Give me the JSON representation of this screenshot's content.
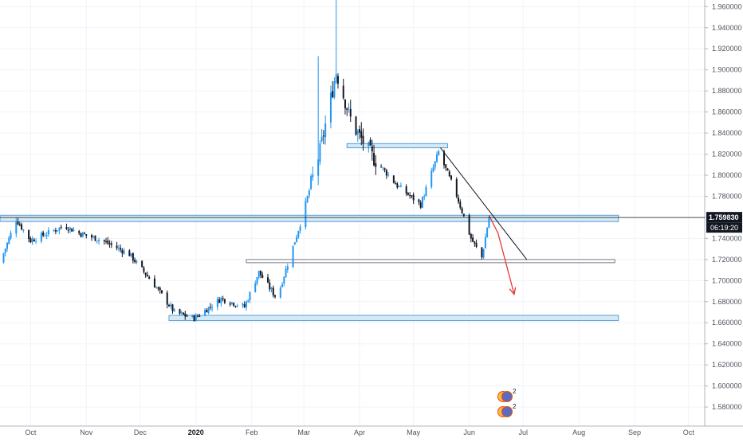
{
  "price_axis": {
    "ticks": [
      "1.960000",
      "1.940000",
      "1.920000",
      "1.900000",
      "1.880000",
      "1.860000",
      "1.840000",
      "1.820000",
      "1.800000",
      "1.780000",
      "1.760000",
      "1.740000",
      "1.720000",
      "1.700000",
      "1.680000",
      "1.660000",
      "1.640000",
      "1.620000",
      "1.600000",
      "1.580000"
    ],
    "tick_values": [
      1.96,
      1.94,
      1.92,
      1.9,
      1.88,
      1.86,
      1.84,
      1.82,
      1.8,
      1.78,
      1.76,
      1.74,
      1.72,
      1.7,
      1.68,
      1.66,
      1.64,
      1.62,
      1.6,
      1.58
    ],
    "current_price": "1.759830",
    "current_price_value": 1.75983,
    "countdown": "06:19:20"
  },
  "time_axis": {
    "labels": [
      "Oct",
      "Nov",
      "Dec",
      "2020",
      "Feb",
      "Mar",
      "Apr",
      "May",
      "Jun",
      "Jul",
      "Aug",
      "Sep",
      "Oct"
    ],
    "bold_label": "2020"
  },
  "colors": {
    "up": "#2196f3",
    "down": "#131722",
    "zone_fill": "#d4e9f6",
    "zone_stroke": "#5b9bd5",
    "trendline": "#131722",
    "arrow": "#e53935",
    "price_label_bg": "#131722"
  },
  "chart_data": {
    "type": "candlestick",
    "x_range": [
      "2019-09-14",
      "2020-10-10"
    ],
    "ylim": [
      1.571,
      1.9625
    ],
    "key_prices": {
      "all_time_high_wick": 1.97,
      "mar_peak": 1.905,
      "dec_low": 1.662,
      "jun_low": 1.72,
      "sep_oct_highs": 1.762
    },
    "series_path": [
      {
        "date": "2019-09-14",
        "close": 1.717
      },
      {
        "date": "2019-09-23",
        "close": 1.758
      },
      {
        "date": "2019-10-01",
        "close": 1.738
      },
      {
        "date": "2019-10-20",
        "close": 1.752
      },
      {
        "date": "2019-10-28",
        "close": 1.745
      },
      {
        "date": "2019-11-10",
        "close": 1.738
      },
      {
        "date": "2019-11-25",
        "close": 1.725
      },
      {
        "date": "2019-12-08",
        "close": 1.698
      },
      {
        "date": "2019-12-20",
        "close": 1.67
      },
      {
        "date": "2019-12-31",
        "close": 1.664
      },
      {
        "date": "2020-01-15",
        "close": 1.683
      },
      {
        "date": "2020-01-28",
        "close": 1.675
      },
      {
        "date": "2020-02-05",
        "close": 1.708
      },
      {
        "date": "2020-02-15",
        "close": 1.683
      },
      {
        "date": "2020-02-28",
        "close": 1.754
      },
      {
        "date": "2020-03-10",
        "close": 1.823
      },
      {
        "date": "2020-03-19",
        "close": 1.898
      },
      {
        "date": "2020-03-28",
        "close": 1.848
      },
      {
        "date": "2020-04-08",
        "close": 1.818
      },
      {
        "date": "2020-04-22",
        "close": 1.79
      },
      {
        "date": "2020-05-05",
        "close": 1.772
      },
      {
        "date": "2020-05-15",
        "close": 1.822
      },
      {
        "date": "2020-05-25",
        "close": 1.781
      },
      {
        "date": "2020-06-02",
        "close": 1.74
      },
      {
        "date": "2020-06-08",
        "close": 1.722
      },
      {
        "date": "2020-06-12",
        "close": 1.76
      }
    ],
    "zones": [
      {
        "name": "resistance-zone",
        "date_from": "2019-09-14",
        "date_to": "2020-08-23",
        "price_from": 1.756,
        "price_to": 1.762
      },
      {
        "name": "mar-consolidation-zone",
        "date_from": "2020-03-25",
        "date_to": "2020-05-20",
        "price_from": 1.826,
        "price_to": 1.83
      },
      {
        "name": "feb-support-zone",
        "date_from": "2020-01-29",
        "date_to": "2020-08-21",
        "price_from": 1.718,
        "price_to": 1.72
      },
      {
        "name": "dec-support-zone",
        "date_from": "2019-12-17",
        "date_to": "2020-08-23",
        "price_from": 1.662,
        "price_to": 1.667
      }
    ],
    "trendline": {
      "from": {
        "date": "2020-05-16",
        "price": 1.826
      },
      "to": {
        "date": "2020-07-03",
        "price": 1.72
      }
    },
    "forecast_arrow": [
      {
        "date": "2020-06-12",
        "price": 1.762
      },
      {
        "date": "2020-06-17",
        "price": 1.745
      },
      {
        "date": "2020-06-26",
        "price": 1.687
      }
    ],
    "grid": true
  },
  "event_badges": [
    {
      "count": "2"
    },
    {
      "count": "2"
    }
  ]
}
